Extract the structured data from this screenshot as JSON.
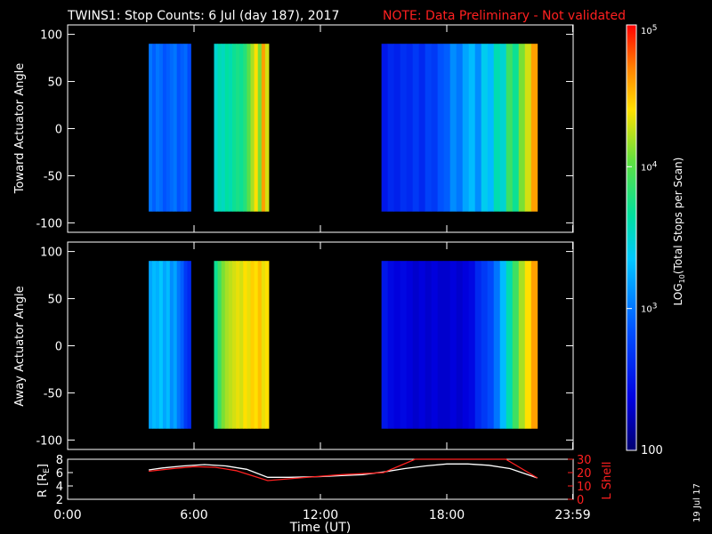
{
  "title": {
    "main": "TWINS1: Stop Counts:  6 Jul (day 187), 2017",
    "note": "NOTE: Data Preliminary - Not validated",
    "note_color": "#ff2020"
  },
  "stamp": "19 Jul 17",
  "colors": {
    "background": "#000000",
    "frame": "#ffffff",
    "lshell": "#ff2020",
    "radius": "#ffffff"
  },
  "chart_data": [
    {
      "type": "heatmap",
      "id": "toward",
      "ylabel": "Toward Actuator Angle",
      "ylim": [
        -110,
        110
      ],
      "yticks": [
        "100",
        "50",
        "0",
        "-50",
        "-100"
      ],
      "ytick_values": [
        100,
        50,
        0,
        -50,
        -100
      ],
      "xlim": [
        0,
        24
      ],
      "angle_range": [
        -88,
        90
      ],
      "blocks": [
        {
          "start": 3.85,
          "end": 5.85,
          "log_counts": [
            3.0,
            2.9,
            3.0,
            2.95,
            2.85,
            2.9,
            2.95,
            3.0,
            2.85,
            2.9,
            2.95,
            2.8
          ]
        },
        {
          "start": 6.95,
          "end": 9.55,
          "log_counts": [
            3.5,
            3.6,
            3.55,
            3.65,
            3.6,
            3.7,
            3.75,
            3.7,
            3.8,
            4.0,
            4.2,
            4.4,
            4.1,
            4.6,
            4.3
          ]
        },
        {
          "start": 14.9,
          "end": 22.3,
          "log_counts": [
            2.5,
            2.6,
            2.55,
            2.65,
            2.6,
            2.7,
            2.6,
            2.75,
            2.7,
            2.85,
            2.9,
            3.1,
            3.0,
            3.2,
            3.3,
            3.1,
            3.4,
            3.3,
            3.6,
            3.5,
            3.9,
            3.7,
            4.1,
            4.3,
            4.6
          ]
        }
      ]
    },
    {
      "type": "heatmap",
      "id": "away",
      "ylabel": "Away Actuator Angle",
      "ylim": [
        -110,
        110
      ],
      "yticks": [
        "100",
        "50",
        "0",
        "-50",
        "-100"
      ],
      "ytick_values": [
        100,
        50,
        0,
        -50,
        -100
      ],
      "xlim": [
        0,
        24
      ],
      "angle_range": [
        -88,
        90
      ],
      "blocks": [
        {
          "start": 3.85,
          "end": 5.85,
          "log_counts": [
            3.2,
            3.3,
            3.25,
            3.35,
            3.2,
            3.3,
            3.1,
            3.2,
            3.0,
            2.9,
            2.7,
            2.6
          ]
        },
        {
          "start": 6.95,
          "end": 9.55,
          "log_counts": [
            3.7,
            3.9,
            4.1,
            4.2,
            4.25,
            4.3,
            4.35,
            4.3,
            4.4,
            4.35,
            4.45,
            4.4,
            4.5,
            4.35,
            4.4
          ]
        },
        {
          "start": 14.9,
          "end": 22.3,
          "log_counts": [
            2.5,
            2.4,
            2.35,
            2.4,
            2.35,
            2.3,
            2.35,
            2.3,
            2.35,
            2.3,
            2.3,
            2.35,
            2.3,
            2.35,
            2.4,
            2.6,
            2.7,
            2.8,
            3.0,
            3.3,
            3.6,
            3.9,
            4.2,
            4.4,
            4.6
          ]
        }
      ]
    },
    {
      "type": "line",
      "id": "orbit",
      "ylabel": "R [R",
      "ylabel_sub": "E",
      "ylabel_close": "]",
      "ylim": [
        2,
        8
      ],
      "yticks": [
        "8",
        "6",
        "4",
        "2"
      ],
      "ytick_values": [
        8,
        6,
        4,
        2
      ],
      "y2label": "L Shell",
      "y2lim": [
        0,
        30
      ],
      "y2ticks": [
        "30",
        "20",
        "10",
        "0"
      ],
      "y2tick_values": [
        30,
        20,
        10,
        0
      ],
      "xlabel": "Time (UT)",
      "xlim": [
        0,
        24
      ],
      "xticks": [
        "0:00",
        "6:00",
        "12:00",
        "18:00",
        "23:59"
      ],
      "xtick_values": [
        0,
        6,
        12,
        18,
        23.98
      ],
      "series": [
        {
          "axis": "left",
          "color": "#ffffff",
          "x": [
            3.85,
            4.5,
            5.5,
            6.5,
            7.5,
            8.5,
            9.5,
            10.5,
            12,
            14,
            15,
            16,
            17,
            18,
            19,
            20,
            21,
            22.3
          ],
          "y": [
            6.4,
            6.7,
            7.0,
            7.2,
            7.0,
            6.5,
            5.3,
            5.3,
            5.4,
            5.7,
            6.1,
            6.6,
            7.0,
            7.3,
            7.3,
            7.1,
            6.6,
            5.2
          ]
        },
        {
          "axis": "right",
          "color": "#ff2020",
          "x": [
            3.85,
            5.0,
            6.0,
            7.0,
            8.0,
            9.5,
            11,
            13,
            15,
            16.5,
            20.8,
            22.3
          ],
          "y": [
            21,
            23,
            24.5,
            24,
            21.5,
            14,
            16,
            18.5,
            20,
            31,
            31,
            16
          ]
        }
      ]
    }
  ],
  "colorbar": {
    "ylabel": "LOG",
    "ylabel_sub": "10",
    "ylabel_rest": "(Total Stops per Scan)",
    "ticks": [
      {
        "base": "10",
        "exp": "5",
        "value": 5
      },
      {
        "base": "10",
        "exp": "4",
        "value": 4
      },
      {
        "base": "10",
        "exp": "3",
        "value": 3
      },
      {
        "base": "100",
        "exp": "",
        "value": 2
      }
    ],
    "range": [
      2,
      5
    ]
  }
}
